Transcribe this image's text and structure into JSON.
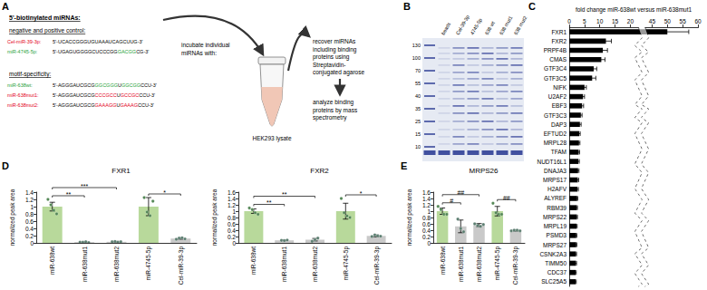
{
  "panel_labels": [
    "A",
    "B",
    "C",
    "D",
    "E"
  ],
  "schematic": {
    "heading": "5'-biotinylated miRNAs:",
    "groups": [
      {
        "heading": "negative and positive control:",
        "items": [
          {
            "name": "Cel-miR-39-3p:",
            "color": "#e3001b",
            "sequence": [
              {
                "text": "5'-UCACCGGGUGUAAAUCAGCUUG-3'"
              }
            ]
          },
          {
            "name": "miR-4745-5p:",
            "color": "#1fa23a",
            "sequence": [
              {
                "text": "5'-UGAGUGGGGCUCCCGG"
              },
              {
                "text": "GACGG",
                "color": "#1fa23a"
              },
              {
                "text": "CG-3'"
              }
            ]
          }
        ]
      },
      {
        "heading": "motif-specificity:",
        "items": [
          {
            "name": "miR-638wt:",
            "color": "#1fa23a",
            "sequence": [
              {
                "text": "5'-AGGGAUCGCG"
              },
              {
                "text": "GGCGGG",
                "color": "#1fa23a"
              },
              {
                "text": "U"
              },
              {
                "text": "GGCGG",
                "color": "#1fa23a"
              },
              {
                "text": "CCU-3'"
              }
            ]
          },
          {
            "name": "miR-638mut1:",
            "color": "#e3001b",
            "sequence": [
              {
                "text": "5'-AGGGAUCGCG"
              },
              {
                "text": "CCCGCC",
                "color": "#e3001b"
              },
              {
                "text": "U"
              },
              {
                "text": "GCCGC",
                "color": "#e3001b"
              },
              {
                "text": "CCU-3'"
              }
            ]
          },
          {
            "name": "miR-638mut2:",
            "color": "#e3001b",
            "sequence": [
              {
                "text": "5'-AGGGAUCGCG"
              },
              {
                "text": "GAAAGG",
                "color": "#e3001b"
              },
              {
                "text": "U"
              },
              {
                "text": "GAAAG",
                "color": "#e3001b"
              },
              {
                "text": "CCU-3'"
              }
            ]
          }
        ]
      }
    ],
    "steps": [
      [
        "incubate individual",
        "miRNAs with:"
      ],
      [
        "recover miRNAs",
        "including binding",
        "proteins using",
        "Streptavidin-",
        "conjugated agarose"
      ],
      [
        "analyze binding",
        "proteins by mass",
        "spectrometry"
      ]
    ],
    "lysate": "HEK293 lysate"
  },
  "gel": {
    "lanes": [
      "beads",
      "Cel-39-3p",
      "4745-5p",
      "638 wt",
      "638 mut1",
      "638 mut2"
    ],
    "markers": [
      130,
      100,
      70,
      55,
      40,
      35,
      25,
      15,
      10
    ]
  },
  "chart_data": [
    {
      "type": "bar",
      "orientation": "horizontal",
      "x_label": "fold change miR-638wt versus miR-638mut1",
      "categories": [
        "FXR1",
        "FXR2",
        "PRPF4B",
        "CMAS",
        "GTF3C4",
        "GTF3C5",
        "NIFK",
        "U2AF2",
        "EBF3",
        "GTF3C3",
        "DAP3",
        "EFTUD2",
        "MRPL28",
        "TFAM",
        "NUDT16L1",
        "DNAJA3",
        "MRPS17",
        "H2AFV",
        "ALYREF",
        "RBM39",
        "MRPS22",
        "MRPL19",
        "PSMD3",
        "MRPS27",
        "CSNK2A3",
        "TIMM50",
        "CDC37",
        "SLC25A5"
      ],
      "values": [
        50,
        12,
        11,
        10.5,
        8,
        7.5,
        5,
        4.5,
        4.2,
        3.8,
        3.5,
        3.3,
        3.2,
        3.1,
        3,
        2.9,
        2.8,
        2.7,
        2.6,
        2.5,
        2.5,
        2.4,
        2.3,
        2.3,
        2.2,
        2.2,
        2.1,
        2.1
      ],
      "errors": [
        7,
        1.8,
        1.5,
        1.2,
        1,
        1.2,
        0.6,
        0.5,
        0.5,
        0.4,
        0.4,
        0.3,
        0.3,
        0.3,
        0.3,
        0.3,
        0.3,
        0.3,
        0.2,
        0.2,
        0.2,
        0.2,
        0.2,
        0.2,
        0.2,
        0.2,
        0.2,
        0.2
      ],
      "color": "#000000",
      "xlim": [
        0,
        60
      ],
      "xticks": [
        0,
        5,
        10,
        15,
        20,
        45,
        50,
        55,
        60
      ]
    },
    {
      "type": "bar",
      "title": "FXR1",
      "y_label": "normalized peak area",
      "marker": "circle",
      "categories": [
        "miR-638wt",
        "miR-638mut1",
        "miR-638mut2",
        "miR-4745-5p",
        "Cel-miR-39-3p"
      ],
      "values": [
        1,
        0.02,
        0.03,
        1,
        0.12
      ],
      "errors": [
        0.12,
        0.01,
        0.01,
        0.25,
        0.02
      ],
      "points": [
        [
          1.2,
          1.05,
          0.9,
          0.8
        ],
        [
          0.02,
          0.02,
          0.03,
          0.01
        ],
        [
          0.03,
          0.04,
          0.02,
          0.03
        ],
        [
          1.25,
          0.85,
          0.75,
          1.15
        ],
        [
          0.1,
          0.13,
          0.14,
          0.11
        ]
      ],
      "colors": [
        "#b8d99b",
        "#c9c9c9",
        "#c9c9c9",
        "#b8d99b",
        "#c9c9c9"
      ],
      "ylim": [
        0,
        1.4
      ],
      "yticks": [
        0,
        0.2,
        0.4,
        0.6,
        0.8,
        1,
        1.2,
        1.4
      ],
      "significance": [
        {
          "from": "miR-638wt",
          "to": "miR-638mut1",
          "label": "**"
        },
        {
          "from": "miR-638wt",
          "to": "miR-638mut2",
          "label": "***"
        },
        {
          "from": "miR-4745-5p",
          "to": "Cel-miR-39-3p",
          "label": "*"
        }
      ]
    },
    {
      "type": "bar",
      "title": "FXR2",
      "y_label": "normalized peak area",
      "marker": "circle",
      "categories": [
        "miR-638wt",
        "miR-638mut1",
        "miR-638mut2",
        "miR-4745-5p",
        "Cel-miR-39-3p"
      ],
      "values": [
        1,
        0.08,
        0.1,
        1,
        0.22
      ],
      "errors": [
        0.07,
        0.01,
        0.04,
        0.25,
        0.03
      ],
      "points": [
        [
          1.1,
          1.05,
          0.95,
          0.9
        ],
        [
          0.08,
          0.07,
          0.09
        ],
        [
          0.05,
          0.1,
          0.15
        ],
        [
          1.4,
          0.95,
          0.85,
          0.8
        ],
        [
          0.2,
          0.25,
          0.22,
          0.21
        ]
      ],
      "colors": [
        "#b8d99b",
        "#c9c9c9",
        "#c9c9c9",
        "#b8d99b",
        "#c9c9c9"
      ],
      "ylim": [
        0,
        1.6
      ],
      "yticks": [
        0,
        0.2,
        0.4,
        0.6,
        0.8,
        1,
        1.2,
        1.4,
        1.6
      ],
      "significance": [
        {
          "from": "miR-638wt",
          "to": "miR-638mut1",
          "label": "**"
        },
        {
          "from": "miR-638wt",
          "to": "miR-638mut2",
          "label": "**"
        },
        {
          "from": "miR-4745-5p",
          "to": "Cel-miR-39-3p",
          "label": "*"
        }
      ]
    },
    {
      "type": "bar",
      "title": "MRPS26",
      "y_label": "normalized peak area",
      "marker": "circle",
      "categories": [
        "miR-638wt",
        "miR-638mut1",
        "miR-638mut2",
        "miR-4745-5p",
        "Cel-miR-39-3p"
      ],
      "values": [
        1,
        0.52,
        0.56,
        1,
        0.39
      ],
      "errors": [
        0.1,
        0.2,
        0.05,
        0.15,
        0.02
      ],
      "points": [
        [
          1.15,
          1.05,
          0.9,
          0.9
        ],
        [
          0.75,
          0.45,
          0.35
        ],
        [
          0.6,
          0.55,
          0.52,
          0.58
        ],
        [
          1.25,
          0.95,
          0.9,
          0.9
        ],
        [
          0.38,
          0.4,
          0.4,
          0.38
        ]
      ],
      "colors": [
        "#b8d99b",
        "#c9c9c9",
        "#c9c9c9",
        "#b8d99b",
        "#c9c9c9"
      ],
      "ylim": [
        0,
        1.6
      ],
      "yticks": [
        0,
        0.2,
        0.4,
        0.6,
        0.8,
        1,
        1.2,
        1.4,
        1.6
      ],
      "significance": [
        {
          "from": "miR-638wt",
          "to": "miR-638mut1",
          "label": "#"
        },
        {
          "from": "miR-638wt",
          "to": "miR-638mut2",
          "label": "##"
        },
        {
          "from": "miR-4745-5p",
          "to": "Cel-miR-39-3p",
          "label": "##"
        }
      ]
    }
  ]
}
